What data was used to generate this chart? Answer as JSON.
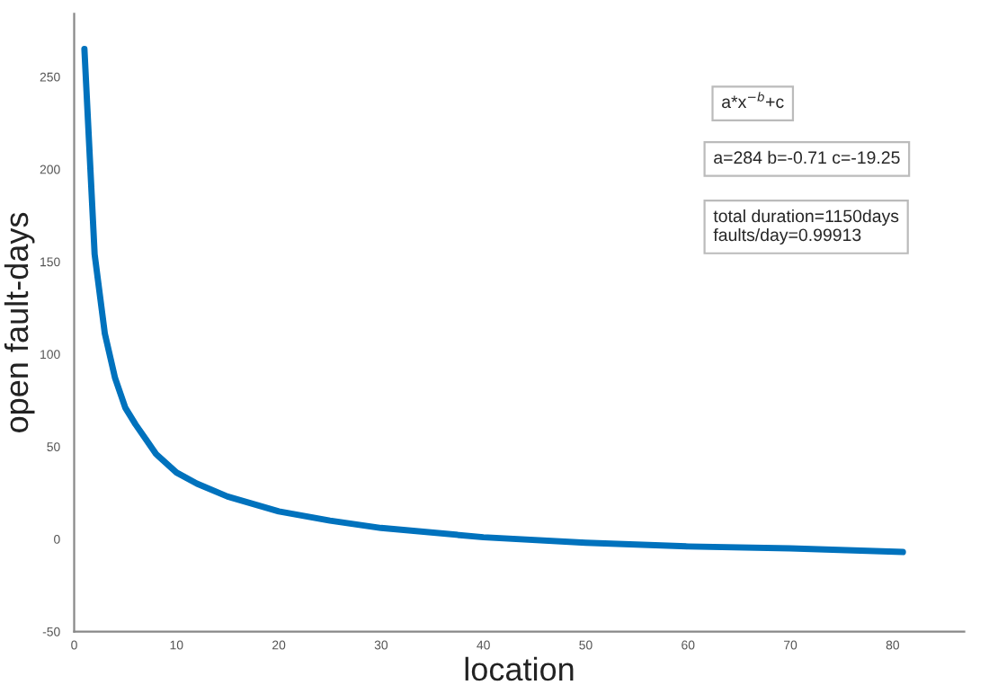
{
  "chart_data": {
    "type": "line",
    "xlabel": "location",
    "ylabel": "open fault-days",
    "xlim": [
      0,
      87
    ],
    "xticks": [
      0,
      10,
      20,
      30,
      40,
      50,
      60,
      70,
      80
    ],
    "ylim": [
      -50,
      284
    ],
    "yticks": [
      -50,
      0,
      50,
      100,
      150,
      200,
      250
    ],
    "grid": false,
    "marker": "none",
    "line_style": "solid",
    "series": [
      {
        "color": "#0072bd",
        "x": [
          1,
          2,
          3,
          4,
          5,
          6,
          7,
          8,
          10,
          12,
          15,
          20,
          25,
          30,
          40,
          50,
          60,
          70,
          81
        ],
        "values": [
          265,
          154,
          111,
          87,
          71,
          62,
          54,
          46,
          36,
          30,
          23,
          15,
          10,
          6,
          1,
          -2,
          -4,
          -5,
          -7
        ]
      }
    ],
    "annotations": [
      "a*x$^{−b}$+c",
      "a=284 b=-0.71 c=-19.25",
      "total duration=1150days\nfaults/day=0.99913"
    ]
  }
}
